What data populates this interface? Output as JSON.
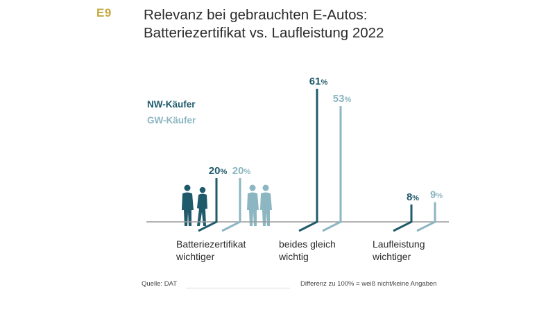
{
  "header": {
    "figure_label": "E9",
    "title_line1": "Relevanz bei gebrauchten E-Autos:",
    "title_line2": "Batteriezertifikat vs. Laufleistung 2022"
  },
  "colors": {
    "accent": "#c2a83e",
    "nw": "#1f5a6b",
    "gw": "#8cb6c2",
    "baseline": "#9a9a9a",
    "text": "#2b2b2b"
  },
  "chart_data": {
    "type": "bar",
    "categories": [
      [
        "Batteriezertifikat",
        "wichtiger"
      ],
      [
        "beides gleich",
        "wichtig"
      ],
      [
        "Laufleistung",
        "wichtiger"
      ]
    ],
    "series": [
      {
        "name": "NW-Käufer",
        "values": [
          20,
          61,
          8
        ]
      },
      {
        "name": "GW-Käufer",
        "values": [
          20,
          53,
          9
        ]
      }
    ],
    "unit": "%",
    "ylim": [
      0,
      61
    ],
    "grid": false,
    "legend_position": "top-left"
  },
  "footer": {
    "source": "Quelle: DAT",
    "note": "Differenz zu 100% = weiß nicht/keine Angaben"
  }
}
